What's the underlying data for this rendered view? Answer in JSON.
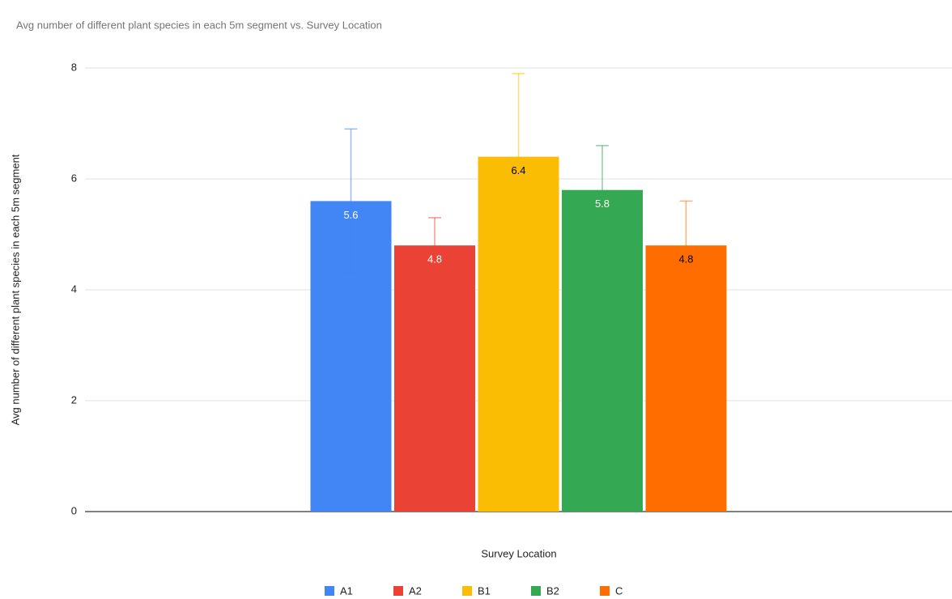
{
  "chart_data": {
    "type": "bar",
    "title": "Avg number of different plant species in each 5m segment vs. Survey Location",
    "x_label": "Survey Location",
    "y_label": "Avg number of different plant species in each 5m segment",
    "categories": [
      null
    ],
    "series": [
      {
        "name": "A1",
        "color": "#4285f4",
        "label_color": "#ffffff",
        "values": [
          5.6
        ],
        "errors": [
          1.3
        ]
      },
      {
        "name": "A2",
        "color": "#ea4335",
        "label_color": "#ffffff",
        "values": [
          4.8
        ],
        "errors": [
          0.5
        ]
      },
      {
        "name": "B1",
        "color": "#fbbc04",
        "label_color": "#000000",
        "values": [
          6.4
        ],
        "errors": [
          1.5
        ]
      },
      {
        "name": "B2",
        "color": "#34a853",
        "label_color": "#ffffff",
        "values": [
          5.8
        ],
        "errors": [
          0.8
        ]
      },
      {
        "name": "C",
        "color": "#ff6d01",
        "label_color": "#000000",
        "values": [
          4.8
        ],
        "errors": [
          0.8
        ]
      }
    ],
    "ylim": [
      0,
      8
    ],
    "yticks": [
      0,
      2,
      4,
      6,
      8
    ],
    "grid": true,
    "legend": "bottom"
  }
}
